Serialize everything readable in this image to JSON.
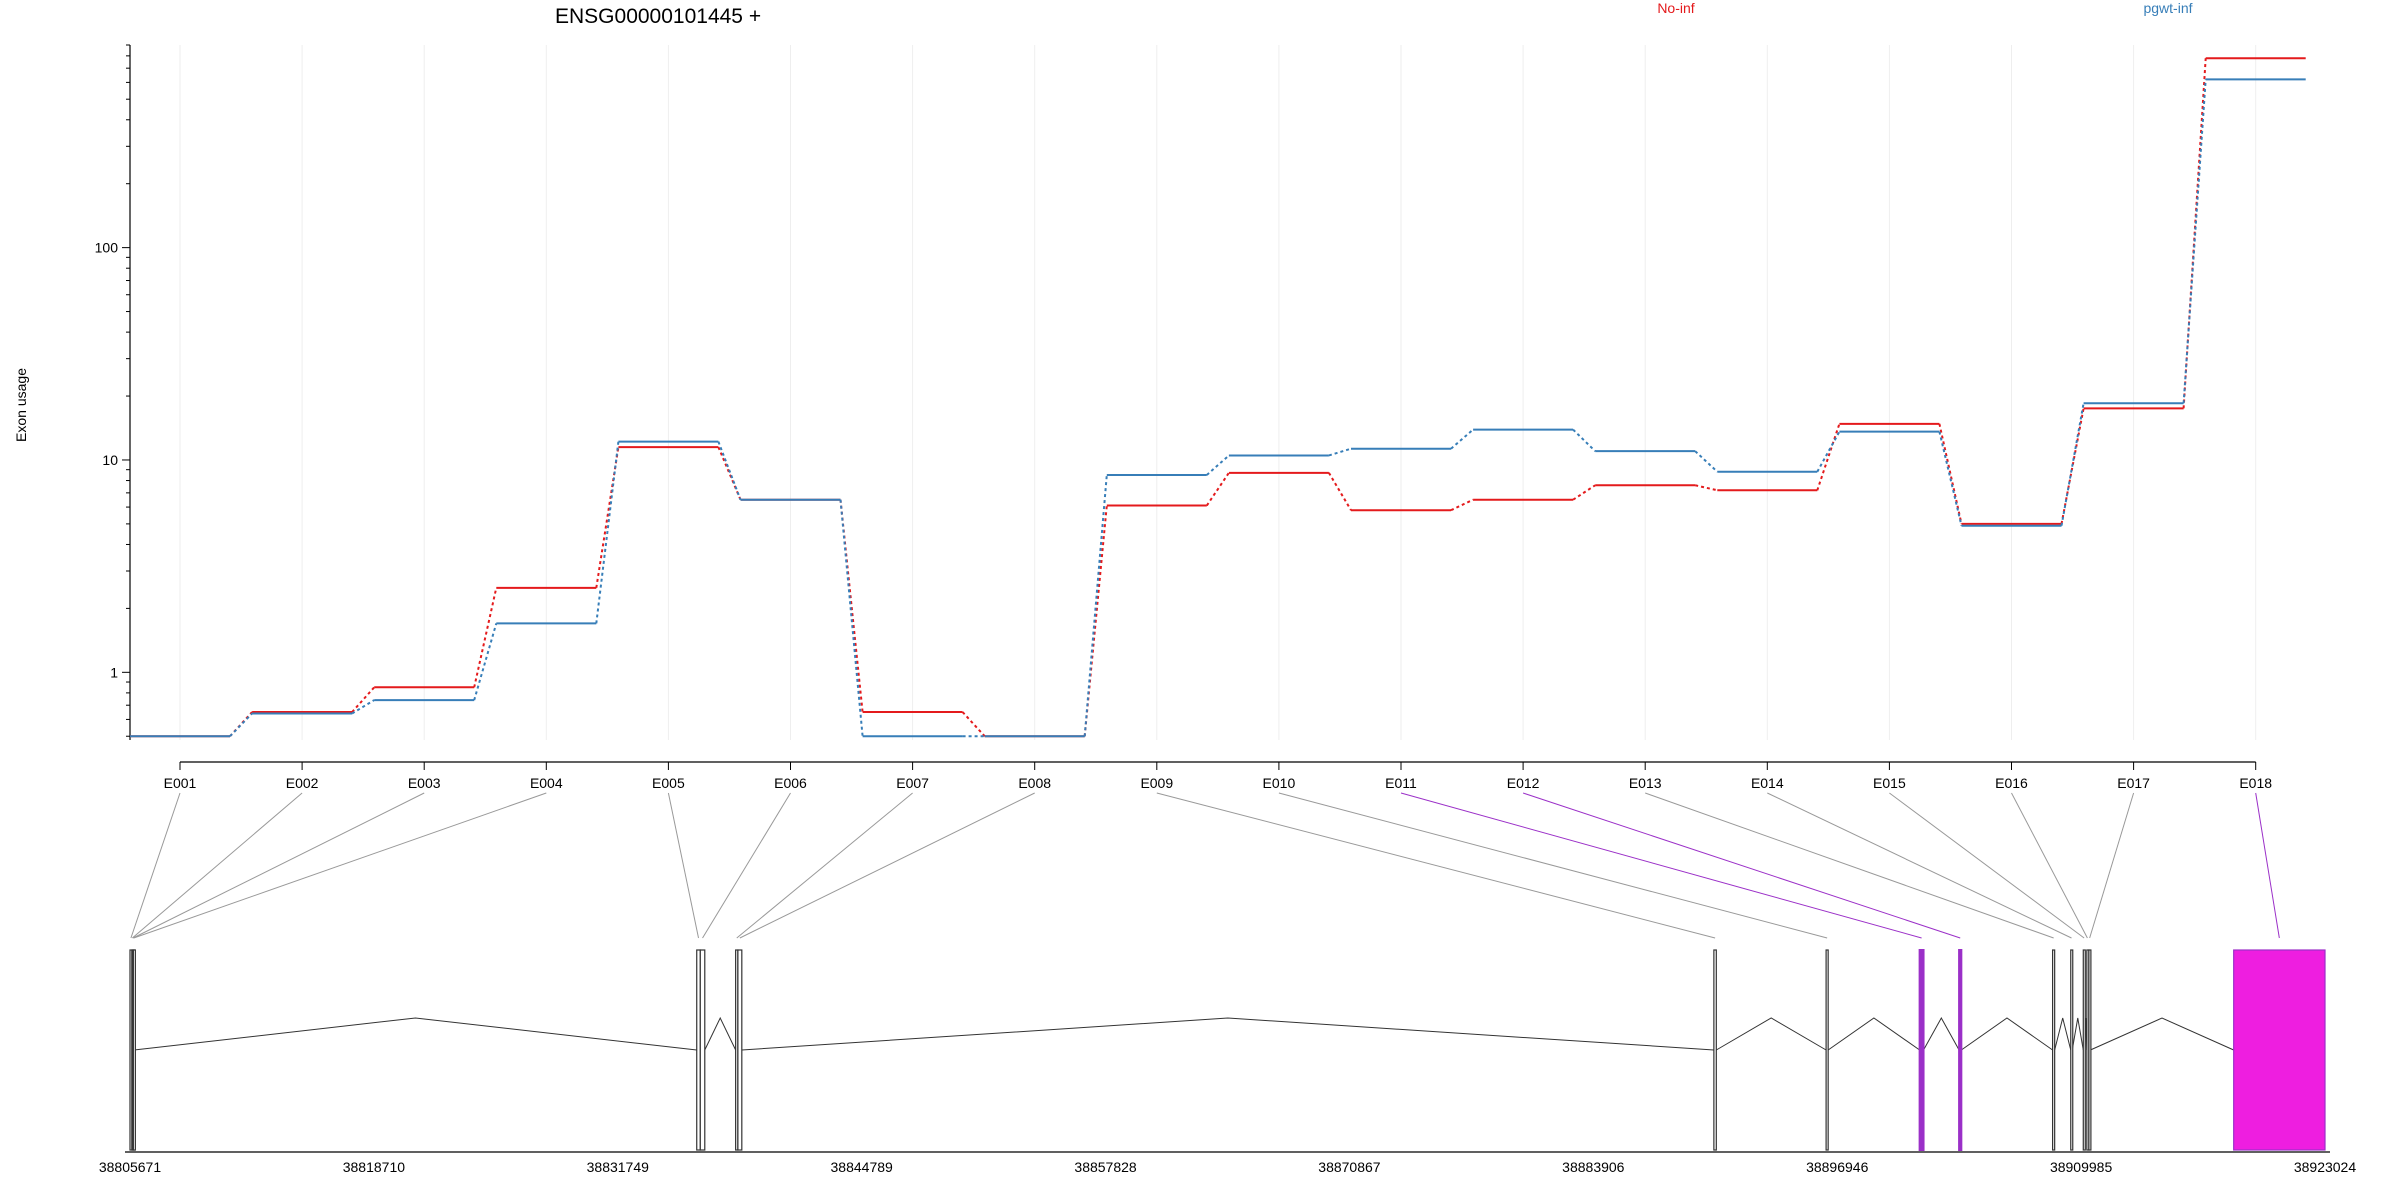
{
  "chart_data": {
    "type": "line",
    "title": "ENSG00000101445 +",
    "ylabel": "Exon usage",
    "yscale": "log",
    "ylim": [
      0.48,
      900
    ],
    "yticks": [
      "1",
      "10",
      "100"
    ],
    "categories": [
      "E001",
      "E002",
      "E003",
      "E004",
      "E005",
      "E006",
      "E007",
      "E008",
      "E009",
      "E010",
      "E011",
      "E012",
      "E013",
      "E014",
      "E015",
      "E016",
      "E017",
      "E018"
    ],
    "series": [
      {
        "name": "No-inf",
        "color": "#e41a1c",
        "values": [
          0.5,
          0.65,
          0.85,
          2.5,
          11.5,
          6.5,
          0.65,
          0.5,
          6.1,
          8.7,
          5.8,
          6.5,
          7.6,
          7.2,
          14.8,
          5.0,
          17.5,
          780
        ]
      },
      {
        "name": "pgwt-inf",
        "color": "#377eb8",
        "values": [
          0.5,
          0.64,
          0.74,
          1.7,
          12.2,
          6.5,
          0.5,
          0.5,
          8.5,
          10.5,
          11.3,
          13.9,
          11.0,
          8.8,
          13.6,
          4.9,
          18.5,
          620
        ]
      }
    ],
    "highlighted_exons": [
      "E011",
      "E012",
      "E018"
    ],
    "gene_model": {
      "xlim": [
        38805671,
        38923024
      ],
      "xticks": [
        "38805671",
        "38818710",
        "38831749",
        "38844789",
        "38857828",
        "38870867",
        "38883906",
        "38896946",
        "38909985",
        "38923024"
      ],
      "exons": [
        {
          "id": "E001",
          "start": 38805671,
          "end": 38805771
        },
        {
          "id": "E002",
          "start": 38805771,
          "end": 38805821
        },
        {
          "id": "E003",
          "start": 38805821,
          "end": 38805851
        },
        {
          "id": "E004",
          "start": 38805851,
          "end": 38805891
        },
        {
          "id": "E005",
          "start": 38835971,
          "end": 38836161
        },
        {
          "id": "E006",
          "start": 38836161,
          "end": 38836401
        },
        {
          "id": "E007",
          "start": 38838051,
          "end": 38838171
        },
        {
          "id": "E008",
          "start": 38838171,
          "end": 38838381
        },
        {
          "id": "E009",
          "start": 38890351,
          "end": 38890481
        },
        {
          "id": "E010",
          "start": 38896351,
          "end": 38896461
        },
        {
          "id": "E011",
          "start": 38901351,
          "end": 38901561
        },
        {
          "id": "E012",
          "start": 38903461,
          "end": 38903581
        },
        {
          "id": "E013",
          "start": 38908461,
          "end": 38908571
        },
        {
          "id": "E014",
          "start": 38909431,
          "end": 38909511
        },
        {
          "id": "E015",
          "start": 38910101,
          "end": 38910191
        },
        {
          "id": "E016",
          "start": 38910291,
          "end": 38910351
        },
        {
          "id": "E017",
          "start": 38910401,
          "end": 38910481
        },
        {
          "id": "E018",
          "start": 38918141,
          "end": 38923024
        }
      ]
    }
  },
  "colors": {
    "highlight": "#ee1ee0",
    "highlight_line": "#9b30c8",
    "connector": "#999999"
  }
}
